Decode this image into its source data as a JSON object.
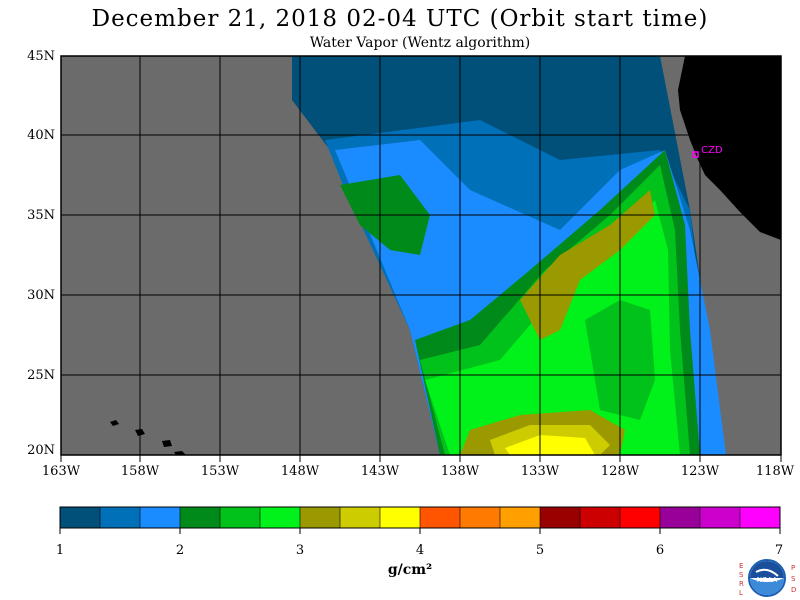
{
  "header": {
    "title": "December 21, 2018  02-04 UTC  (Orbit start time)",
    "subtitle": "Water Vapor (Wentz algorithm)"
  },
  "map": {
    "lat_labels": [
      "45N",
      "40N",
      "35N",
      "30N",
      "25N",
      "20N"
    ],
    "lon_labels": [
      "163W",
      "158W",
      "153W",
      "148W",
      "143W",
      "138W",
      "133W",
      "128W",
      "123W",
      "118W"
    ],
    "station_label": "CZD",
    "colors": {
      "no_data": "#6b6b6b",
      "land": "#000000",
      "grid": "#000000",
      "station": "#ff00ff"
    }
  },
  "colorbar": {
    "tick_labels": [
      "1",
      "2",
      "3",
      "4",
      "5",
      "6",
      "7"
    ],
    "unit": "g/cm²",
    "colors": [
      "#00507a",
      "#0070b8",
      "#1a8cff",
      "#008a1a",
      "#00c21a",
      "#00f21a",
      "#9a9a00",
      "#cccc00",
      "#ffff00",
      "#ff5500",
      "#ff7a00",
      "#ffa000",
      "#990000",
      "#cc0000",
      "#ff0000",
      "#990099",
      "#cc00cc",
      "#ff00ff"
    ]
  },
  "logo": {
    "left_text": "ESRL",
    "right_text": "PSD",
    "center_text": "NOAA"
  }
}
